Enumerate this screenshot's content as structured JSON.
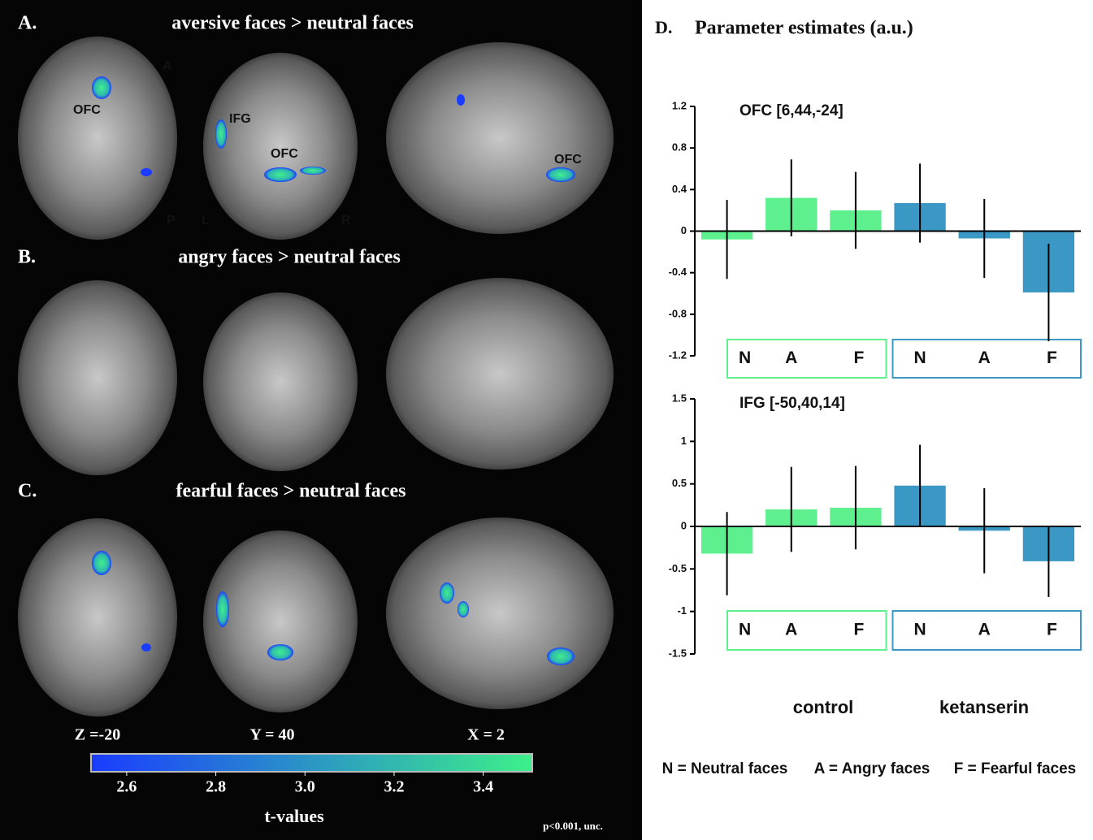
{
  "panels": [
    {
      "letter": "A.",
      "title": "aversive faces > neutral faces"
    },
    {
      "letter": "B.",
      "title": "angry faces > neutral faces"
    },
    {
      "letter": "C.",
      "title": "fearful faces > neutral faces"
    }
  ],
  "annotations": [
    "OFC",
    "A",
    "P",
    "IFG",
    "OFC",
    "L",
    "R",
    "OFC"
  ],
  "slice_labels": [
    "Z =-20",
    "Y = 40",
    "X = 2"
  ],
  "threshold": "p<0.001, unc.",
  "section": {
    "letter": "D.",
    "title": "Parameter estimates (a.u.)"
  },
  "groups": [
    "control",
    "ketanserin"
  ],
  "key": [
    "N = Neutral faces",
    "A = Angry faces",
    "F = Fearful faces"
  ],
  "chart_data": [
    {
      "type": "colorbar",
      "xlabel": "t-values",
      "colors": [
        "#1a3cff",
        "#3df08a"
      ],
      "xlim": [
        2.52,
        3.51
      ],
      "xticks": [
        2.6,
        2.8,
        {
          "value": 3,
          "label": "3.0"
        },
        3.2,
        3.4
      ]
    },
    {
      "type": "bar",
      "title": "OFC [6,44,-24]",
      "categories": [
        "N",
        "A",
        "F"
      ],
      "series": [
        {
          "color": "#5ef08f",
          "values": [
            -0.08,
            0.32,
            0.2
          ],
          "errors": [
            0.38,
            0.37,
            0.37
          ]
        },
        {
          "color": "#3b97c4",
          "values": [
            0.27,
            -0.07,
            -0.59
          ],
          "errors": [
            0.38,
            0.38,
            0.47
          ]
        }
      ],
      "ylim": [
        -1.2,
        1.2
      ],
      "yticks": [
        -1.2,
        -0.8,
        -0.4,
        0,
        0.4,
        0.8,
        1.2
      ]
    },
    {
      "type": "bar",
      "title": "IFG [-50,40,14]",
      "categories": [
        "N",
        "A",
        "F"
      ],
      "series": [
        {
          "color": "#5ef08f",
          "values": [
            -0.32,
            0.2,
            0.22
          ],
          "errors": [
            0.49,
            0.5,
            0.49
          ]
        },
        {
          "color": "#3b97c4",
          "values": [
            0.48,
            -0.05,
            -0.41
          ],
          "errors": [
            0.48,
            0.5,
            0.42
          ]
        }
      ],
      "ylim": [
        -1.5,
        1.5
      ],
      "yticks": [
        -1.5,
        -1,
        -0.5,
        0,
        0.5,
        1,
        1.5
      ]
    }
  ]
}
